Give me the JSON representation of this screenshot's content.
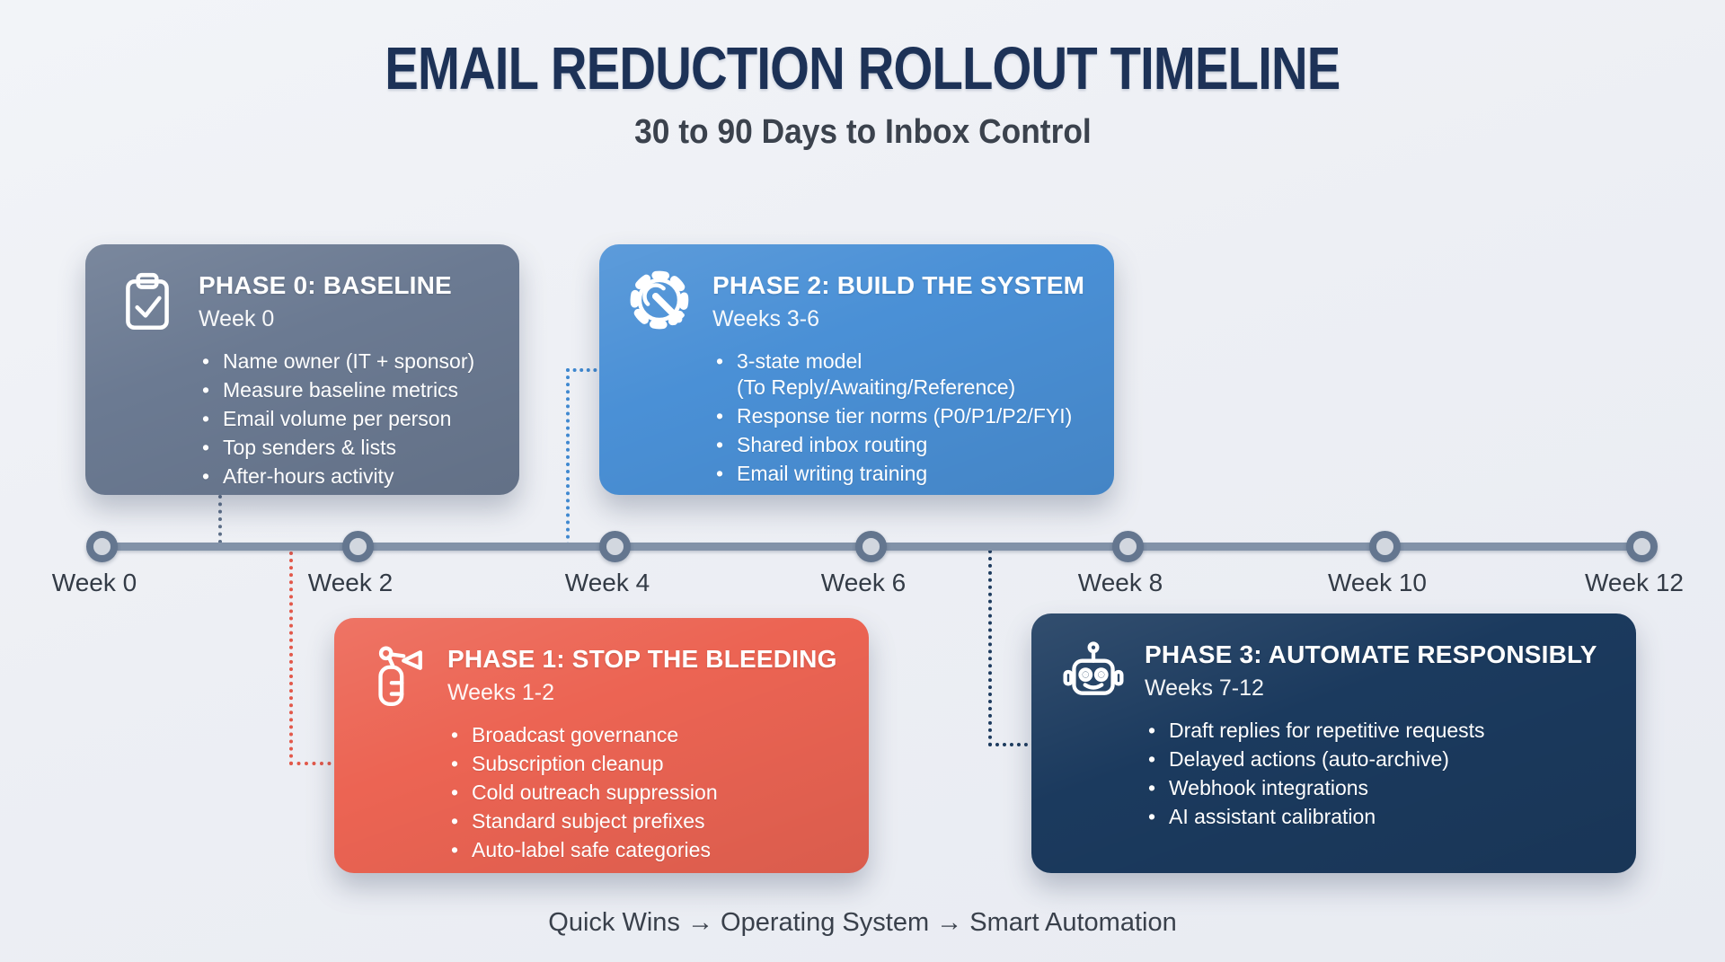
{
  "header": {
    "title": "EMAIL REDUCTION ROLLOUT TIMELINE",
    "subtitle": "30 to 90 Days to Inbox Control"
  },
  "timeline": {
    "weeks": [
      "Week 0",
      "Week 2",
      "Week 4",
      "Week 6",
      "Week 8",
      "Week 10",
      "Week 12"
    ]
  },
  "phases": [
    {
      "id": "phase-0",
      "title": "PHASE 0: BASELINE",
      "weeks": "Week 0",
      "icon": "clipboard-check-icon",
      "color": "#6b7a92",
      "bullets": [
        "Name owner (IT + sponsor)",
        "Measure baseline metrics",
        "Email volume per person",
        "Top senders & lists",
        "After-hours activity"
      ]
    },
    {
      "id": "phase-1",
      "title": "PHASE 1: STOP THE BLEEDING",
      "weeks": "Weeks 1-2",
      "icon": "fire-extinguisher-icon",
      "color": "#ec6453",
      "bullets": [
        "Broadcast governance",
        "Subscription cleanup",
        "Cold outreach suppression",
        "Standard subject prefixes",
        "Auto-label safe categories"
      ]
    },
    {
      "id": "phase-2",
      "title": "PHASE 2: BUILD THE SYSTEM",
      "weeks": "Weeks 3-6",
      "icon": "gear-wrench-icon",
      "color": "#4a90d6",
      "bullets": [
        "3-state model\n(To Reply/Awaiting/Reference)",
        "Response tier norms (P0/P1/P2/FYI)",
        "Shared inbox routing",
        "Email writing training"
      ]
    },
    {
      "id": "phase-3",
      "title": "PHASE 3: AUTOMATE RESPONSIBLY",
      "weeks": "Weeks 7-12",
      "icon": "robot-icon",
      "color": "#1b3a5e",
      "bullets": [
        "Draft replies for repetitive requests",
        "Delayed actions (auto-archive)",
        "Webhook integrations",
        "AI assistant calibration"
      ]
    }
  ],
  "footer": {
    "text": "Quick Wins → Operating System → Smart Automation"
  },
  "colors": {
    "page_background": "#edeff4",
    "title_text": "#1d3257",
    "body_text": "#39404b",
    "timeline_line": "#8292a8",
    "node_fill": "#d2d7df",
    "node_border": "#64768f",
    "connector_phase0": "#5d6f88",
    "connector_phase1": "#e2584a",
    "connector_phase2": "#3f88d0",
    "connector_phase3": "#1e3c5f"
  }
}
